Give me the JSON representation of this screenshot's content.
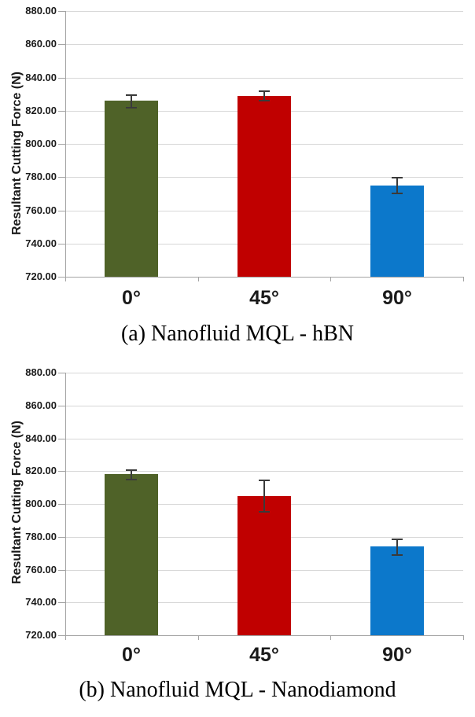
{
  "style": {
    "gridline_color": "#d7d7d7",
    "axis_color": "#a3a3a3",
    "error_bar_color": "#3a3a3a",
    "text_color": "#1a1a1a",
    "background": "#ffffff"
  },
  "chart_data": [
    {
      "type": "bar",
      "title": "(a) Nanofluid MQL - hBN",
      "categories": [
        "0°",
        "45°",
        "90°"
      ],
      "values": [
        826,
        829,
        775
      ],
      "error_bars": [
        4,
        3,
        5
      ],
      "bar_colors": [
        "#4f6228",
        "#c00000",
        "#0c78cb"
      ],
      "xlabel": "",
      "ylabel": "Resultant Cutting Force (N)",
      "ylim": [
        720,
        880
      ],
      "ytick_step": 20,
      "yticks": [
        "720.00",
        "740.00",
        "760.00",
        "780.00",
        "800.00",
        "820.00",
        "840.00",
        "860.00",
        "880.00"
      ],
      "grid": true,
      "legend": "none"
    },
    {
      "type": "bar",
      "title": "(b) Nanofluid MQL - Nanodiamond",
      "categories": [
        "0°",
        "45°",
        "90°"
      ],
      "values": [
        818,
        805,
        774
      ],
      "error_bars": [
        3,
        10,
        5
      ],
      "bar_colors": [
        "#4f6228",
        "#c00000",
        "#0c78cb"
      ],
      "xlabel": "",
      "ylabel": "Resultant Cutting Force (N)",
      "ylim": [
        720,
        880
      ],
      "ytick_step": 20,
      "yticks": [
        "720.00",
        "740.00",
        "760.00",
        "780.00",
        "800.00",
        "820.00",
        "840.00",
        "860.00",
        "880.00"
      ],
      "grid": true,
      "legend": "none"
    }
  ]
}
